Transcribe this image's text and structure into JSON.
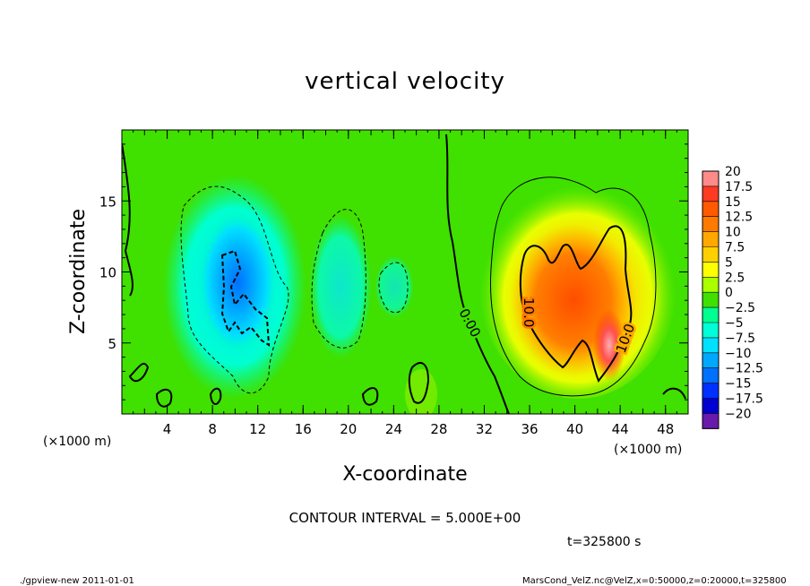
{
  "chart_data": {
    "type": "heatmap",
    "title": "vertical velocity",
    "xlabel": "X-coordinate",
    "ylabel": "Z-coordinate",
    "x_unit": "(×1000 m)",
    "y_unit": "(×1000 m)",
    "xlim": [
      0,
      50
    ],
    "ylim": [
      0,
      20
    ],
    "x_ticks": [
      4,
      8,
      12,
      16,
      20,
      24,
      28,
      32,
      36,
      40,
      44,
      48
    ],
    "y_ticks": [
      5,
      10,
      15
    ],
    "colorbar": {
      "labels": [
        "20",
        "17.5",
        "15",
        "12.5",
        "10",
        "7.5",
        "5",
        "2.5",
        "0",
        "-2.5",
        "-5",
        "-7.5",
        "-10",
        "-12.5",
        "-15",
        "-17.5",
        "-20"
      ],
      "values": [
        20,
        17.5,
        15,
        12.5,
        10,
        7.5,
        5,
        2.5,
        0,
        -2.5,
        -5,
        -7.5,
        -10,
        -12.5,
        -15,
        -17.5,
        -20
      ],
      "colors": [
        "#ff8a8a",
        "#ff3a22",
        "#ff5a00",
        "#ff7a00",
        "#ffa800",
        "#ffd000",
        "#ffff00",
        "#aaff00",
        "#40e000",
        "#00ff90",
        "#00ffd8",
        "#00e0ff",
        "#00a8ff",
        "#0070ff",
        "#0030ff",
        "#0000d0",
        "#6a1aaa"
      ]
    },
    "contour_labels": [
      "0.00",
      "10.0",
      "10.0"
    ],
    "contour_interval_text": "CONTOUR INTERVAL = 5.000E+00",
    "time_text": "t=325800 s",
    "grid": false
  },
  "footer": {
    "left": "./gpview-new  2011-01-01",
    "right": "MarsCond_VelZ.nc@VelZ,x=0:50000,z=0:20000,t=325800"
  }
}
